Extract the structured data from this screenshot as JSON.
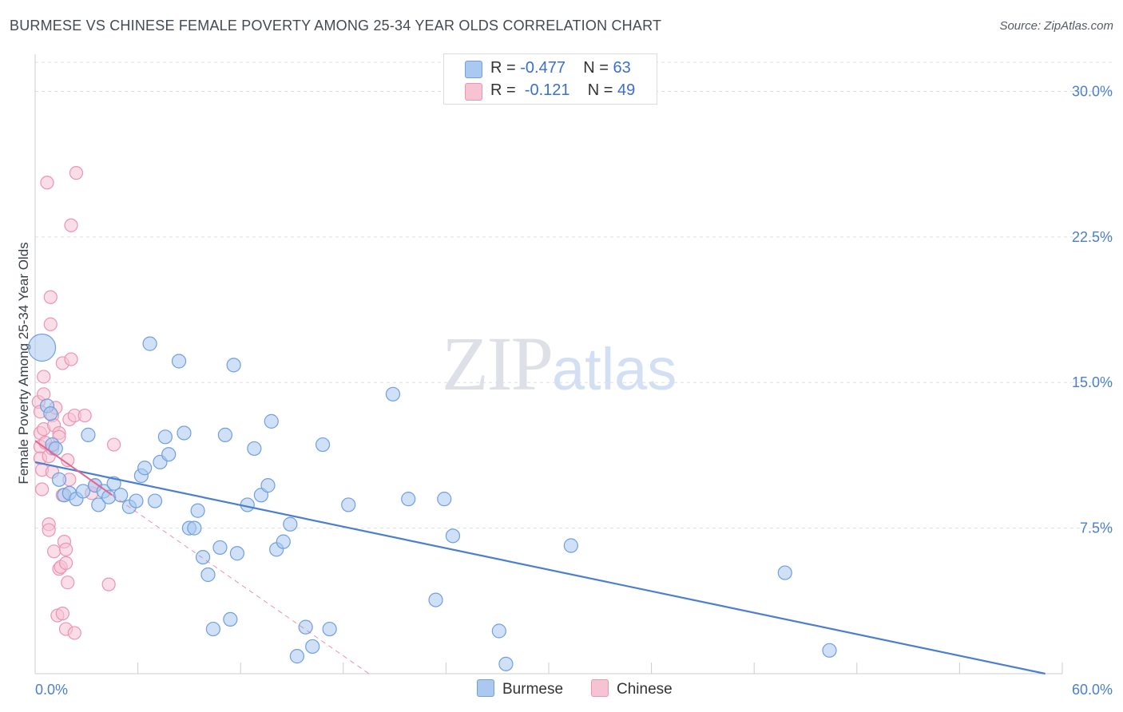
{
  "title": "BURMESE VS CHINESE FEMALE POVERTY AMONG 25-34 YEAR OLDS CORRELATION CHART",
  "source": "Source: ZipAtlas.com",
  "watermark": {
    "zip": "ZIP",
    "atlas": "atlas"
  },
  "legend": {
    "r_label": "R =",
    "n_label": "N =",
    "rows": [
      {
        "r": "-0.477",
        "n": "63",
        "fill": "#aac8f0",
        "stroke": "#6f9fe0"
      },
      {
        "r": "-0.121",
        "n": "49",
        "fill": "#f6c3d3",
        "stroke": "#ec94b1"
      }
    ]
  },
  "bottom_legend": [
    {
      "label": "Burmese",
      "fill": "#aac8f0",
      "stroke": "#6f9fe0"
    },
    {
      "label": "Chinese",
      "fill": "#f6c3d3",
      "stroke": "#ec94b1"
    }
  ],
  "chart_data": {
    "type": "scatter",
    "ylabel": "Female Poverty Among 25-34 Year Olds",
    "xlim": [
      0,
      60
    ],
    "ylim": [
      0,
      31.5
    ],
    "x_tick_labels": [
      "0.0%",
      "60.0%"
    ],
    "y_ticks": [
      7.5,
      15.0,
      22.5,
      30.0
    ],
    "y_tick_labels": [
      "7.5%",
      "15.0%",
      "22.5%",
      "30.0%"
    ],
    "grid": "horizontal dashed",
    "series": [
      {
        "name": "Burmese",
        "color": "#4a7fd0",
        "fill": "#aac8f0",
        "points": [
          [
            0.4,
            16.8
          ],
          [
            0.7,
            13.8
          ],
          [
            1.0,
            11.8
          ],
          [
            1.2,
            11.6
          ],
          [
            1.4,
            10.0
          ],
          [
            1.7,
            9.2
          ],
          [
            2.0,
            9.3
          ],
          [
            2.4,
            9.0
          ],
          [
            2.8,
            9.4
          ],
          [
            3.1,
            12.3
          ],
          [
            3.5,
            9.7
          ],
          [
            3.7,
            8.7
          ],
          [
            4.0,
            9.4
          ],
          [
            4.3,
            9.1
          ],
          [
            4.6,
            9.8
          ],
          [
            5.0,
            9.2
          ],
          [
            5.5,
            8.6
          ],
          [
            5.9,
            8.9
          ],
          [
            6.2,
            10.2
          ],
          [
            6.4,
            10.6
          ],
          [
            6.7,
            17.0
          ],
          [
            7.0,
            8.9
          ],
          [
            7.3,
            10.9
          ],
          [
            7.6,
            12.2
          ],
          [
            7.8,
            11.3
          ],
          [
            8.4,
            16.1
          ],
          [
            8.7,
            12.4
          ],
          [
            9.0,
            7.5
          ],
          [
            9.3,
            7.5
          ],
          [
            9.5,
            8.4
          ],
          [
            9.8,
            6.0
          ],
          [
            10.1,
            5.1
          ],
          [
            10.4,
            2.3
          ],
          [
            10.8,
            6.5
          ],
          [
            11.1,
            12.3
          ],
          [
            11.4,
            2.8
          ],
          [
            11.6,
            15.9
          ],
          [
            11.8,
            6.2
          ],
          [
            12.4,
            8.7
          ],
          [
            12.8,
            11.6
          ],
          [
            13.2,
            9.2
          ],
          [
            13.6,
            9.7
          ],
          [
            13.8,
            13.0
          ],
          [
            14.1,
            6.4
          ],
          [
            14.5,
            6.8
          ],
          [
            14.9,
            7.7
          ],
          [
            15.3,
            0.9
          ],
          [
            15.8,
            2.4
          ],
          [
            16.2,
            1.4
          ],
          [
            16.8,
            11.8
          ],
          [
            17.2,
            2.3
          ],
          [
            18.3,
            8.7
          ],
          [
            20.9,
            14.4
          ],
          [
            21.8,
            9.0
          ],
          [
            23.4,
            3.8
          ],
          [
            23.9,
            9.0
          ],
          [
            24.4,
            7.1
          ],
          [
            27.1,
            2.2
          ],
          [
            27.5,
            0.5
          ],
          [
            31.3,
            6.6
          ],
          [
            43.8,
            5.2
          ],
          [
            46.4,
            1.2
          ],
          [
            0.9,
            13.4
          ]
        ],
        "sizes_note": "one large point near x=0.4",
        "trendline": {
          "x": [
            0,
            59.0
          ],
          "y": [
            10.9,
            0.0
          ]
        }
      },
      {
        "name": "Chinese",
        "color": "#e3668f",
        "fill": "#f6c3d3",
        "points": [
          [
            0.2,
            14.0
          ],
          [
            0.3,
            13.5
          ],
          [
            0.3,
            12.4
          ],
          [
            0.3,
            11.7
          ],
          [
            0.3,
            11.1
          ],
          [
            0.4,
            10.5
          ],
          [
            0.4,
            9.5
          ],
          [
            0.5,
            14.4
          ],
          [
            0.5,
            15.3
          ],
          [
            0.5,
            12.6
          ],
          [
            0.6,
            11.9
          ],
          [
            0.7,
            25.3
          ],
          [
            0.8,
            11.2
          ],
          [
            0.8,
            7.7
          ],
          [
            0.8,
            7.4
          ],
          [
            0.9,
            18.0
          ],
          [
            0.9,
            19.4
          ],
          [
            1.0,
            13.3
          ],
          [
            1.0,
            11.6
          ],
          [
            1.0,
            10.4
          ],
          [
            1.1,
            12.8
          ],
          [
            1.1,
            6.3
          ],
          [
            1.2,
            13.7
          ],
          [
            1.3,
            3.0
          ],
          [
            1.4,
            12.4
          ],
          [
            1.4,
            12.2
          ],
          [
            1.4,
            5.4
          ],
          [
            1.5,
            5.5
          ],
          [
            1.6,
            9.2
          ],
          [
            1.6,
            3.1
          ],
          [
            1.6,
            16.0
          ],
          [
            1.7,
            6.8
          ],
          [
            1.8,
            2.3
          ],
          [
            1.8,
            5.7
          ],
          [
            1.8,
            6.4
          ],
          [
            1.9,
            11.0
          ],
          [
            1.9,
            4.7
          ],
          [
            2.0,
            13.1
          ],
          [
            2.0,
            10.0
          ],
          [
            2.1,
            16.2
          ],
          [
            2.1,
            23.1
          ],
          [
            2.3,
            13.3
          ],
          [
            2.4,
            25.8
          ],
          [
            2.3,
            2.1
          ],
          [
            2.9,
            13.3
          ],
          [
            3.3,
            9.3
          ],
          [
            3.5,
            9.7
          ],
          [
            4.3,
            4.6
          ],
          [
            4.6,
            11.8
          ]
        ],
        "trendline_solid": {
          "x": [
            0,
            4.5
          ],
          "y": [
            12.0,
            9.2
          ]
        },
        "trendline_dashed": {
          "x": [
            4.5,
            19.5
          ],
          "y": [
            9.2,
            0.0
          ]
        }
      }
    ]
  }
}
